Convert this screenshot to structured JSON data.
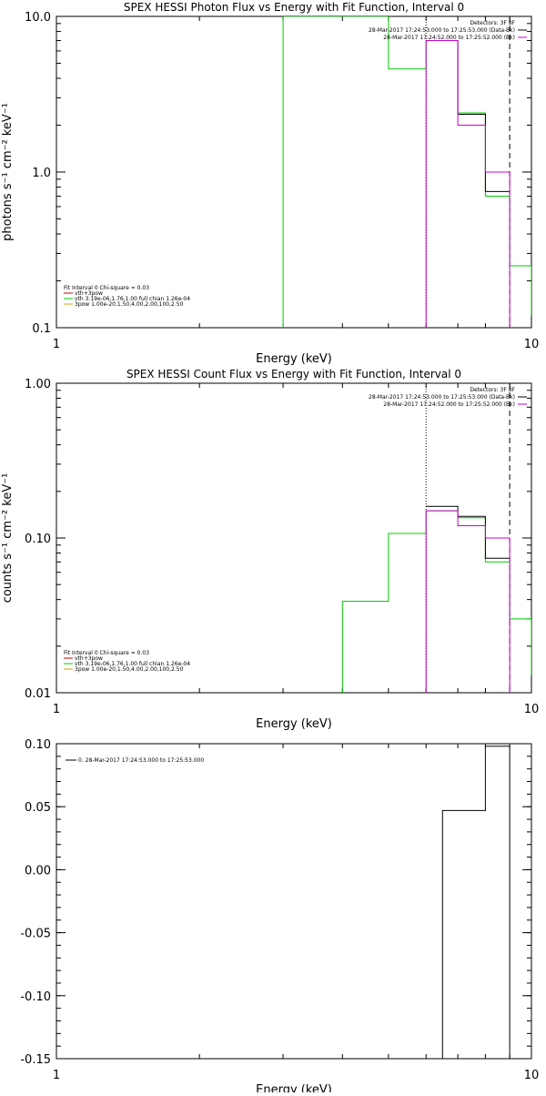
{
  "chart_data": [
    {
      "type": "line",
      "title": "SPEX HESSI Photon Flux vs Energy with Fit Function, Interval 0",
      "xlabel": "Energy (keV)",
      "ylabel": "photons s⁻¹ cm⁻² keV⁻¹",
      "xscale": "log",
      "yscale": "log",
      "xlim": [
        1,
        10
      ],
      "ylim": [
        0.1,
        10
      ],
      "xticks": [
        {
          "v": 1,
          "label": "1"
        },
        {
          "v": 10,
          "label": "10"
        }
      ],
      "yticks": [
        {
          "v": 0.1,
          "label": "0.1"
        },
        {
          "v": 1,
          "label": "1.0"
        },
        {
          "v": 10,
          "label": "10.0"
        }
      ],
      "legend_topright": [
        {
          "text": "Detectors: 3F 8F",
          "color": "#000000"
        },
        {
          "text": "28-Mar-2017 17:24:53.000 to 17:25:53.000 (Data-Bk)",
          "color": "#000000"
        },
        {
          "text": "28-Mar-2017 17:24:52.000 to 17:25:52.000 (Bk)",
          "color": "#cc00cc"
        }
      ],
      "legend_bottomleft": [
        {
          "text": "Fit Interval 0   Chi-square = 0.03",
          "color": "#000000"
        },
        {
          "text": "vth+3pow",
          "color": "#cc0000"
        },
        {
          "text": "vth 3.19e-06,1.76,1.00   full chian 1.26e-04",
          "color": "#00cc00"
        },
        {
          "text": "3pow 1.00e-20,1.50,4.00,2.00,100,2.50",
          "color": "#ccaa00"
        }
      ],
      "vlines": [
        {
          "x": 6.0,
          "style": "dotted",
          "color": "#000000"
        },
        {
          "x": 9.0,
          "style": "dashed",
          "color": "#000000"
        }
      ],
      "series": [
        {
          "color": "#00cc00",
          "edges": [
            3.0,
            5.0,
            6.0,
            7.0,
            8.0,
            9.0,
            10.0
          ],
          "values": [
            10,
            4.6,
            7.0,
            2.4,
            0.7,
            0.25
          ],
          "start_from_bottom": true,
          "end_to": 0.12
        },
        {
          "color": "#000000",
          "edges": [
            6.0,
            7.0,
            8.0,
            9.0
          ],
          "values": [
            7.0,
            2.35,
            0.75
          ],
          "start_from_bottom": false
        },
        {
          "color": "#cc00cc",
          "edges": [
            6.0,
            7.0,
            8.0,
            9.0
          ],
          "values": [
            7.0,
            2.0,
            1.0
          ],
          "start_from_bottom": true,
          "end_to_bottom": true
        }
      ]
    },
    {
      "type": "line",
      "title": "SPEX HESSI Count Flux vs Energy with Fit Function, Interval 0",
      "xlabel": "Energy (keV)",
      "ylabel": "counts s⁻¹ cm⁻² keV⁻¹",
      "xscale": "log",
      "yscale": "log",
      "xlim": [
        1,
        10
      ],
      "ylim": [
        0.01,
        1
      ],
      "xticks": [
        {
          "v": 1,
          "label": "1"
        },
        {
          "v": 10,
          "label": "10"
        }
      ],
      "yticks": [
        {
          "v": 0.01,
          "label": "0.01"
        },
        {
          "v": 0.1,
          "label": "0.10"
        },
        {
          "v": 1,
          "label": "1.00"
        }
      ],
      "legend_topright": [
        {
          "text": "Detectors: 3F 8F",
          "color": "#000000"
        },
        {
          "text": "28-Mar-2017 17:24:53.000 to 17:25:53.000 (Data-Bk)",
          "color": "#000000"
        },
        {
          "text": "28-Mar-2017 17:24:52.000 to 17:25:52.000 (Bk)",
          "color": "#cc00cc"
        }
      ],
      "legend_bottomleft": [
        {
          "text": "Fit Interval 0   Chi-square = 0.03",
          "color": "#000000"
        },
        {
          "text": "vth+3pow",
          "color": "#cc0000"
        },
        {
          "text": "vth 3.19e-06,1.76,1.00   full chian 1.26e-04",
          "color": "#00cc00"
        },
        {
          "text": "3pow 1.00e-20,1.50,4.00,2.00,100,2.50",
          "color": "#ccaa00"
        }
      ],
      "vlines": [
        {
          "x": 6.0,
          "style": "dotted",
          "color": "#000000"
        },
        {
          "x": 9.0,
          "style": "dashed",
          "color": "#000000"
        }
      ],
      "series": [
        {
          "color": "#00cc00",
          "edges": [
            4.0,
            5.0,
            6.0,
            7.0,
            8.0,
            9.0,
            10.0
          ],
          "values": [
            0.039,
            0.107,
            0.15,
            0.135,
            0.07,
            0.03
          ],
          "start_from_bottom": true,
          "end_to": 0.013
        },
        {
          "color": "#000000",
          "edges": [
            6.0,
            7.0,
            8.0,
            9.0
          ],
          "values": [
            0.16,
            0.138,
            0.074
          ],
          "start_from_bottom": false
        },
        {
          "color": "#cc00cc",
          "edges": [
            6.0,
            7.0,
            8.0,
            9.0
          ],
          "values": [
            0.15,
            0.12,
            0.1
          ],
          "start_from_bottom": true,
          "end_to_bottom": true
        }
      ]
    },
    {
      "type": "line",
      "title": "",
      "xlabel": "Energy (keV)",
      "ylabel": "",
      "xscale": "log",
      "yscale": "linear",
      "xlim": [
        1,
        10
      ],
      "ylim": [
        -0.15,
        0.1
      ],
      "xticks": [
        {
          "v": 1,
          "label": "1"
        },
        {
          "v": 10,
          "label": "10"
        }
      ],
      "yticks": [
        {
          "v": 0.1,
          "label": "0.10"
        },
        {
          "v": 0.05,
          "label": "0.05"
        },
        {
          "v": 0.0,
          "label": "0.00"
        },
        {
          "v": -0.05,
          "label": "-0.05"
        },
        {
          "v": -0.1,
          "label": "-0.10"
        },
        {
          "v": -0.15,
          "label": "-0.15"
        }
      ],
      "legend_topleft": [
        {
          "text": "0. 28-Mar-2017 17:24:53.000 to 17:25:53.000",
          "color": "#000000"
        }
      ],
      "vlines": [],
      "series": [
        {
          "color": "#000000",
          "edges": [
            6.5,
            8.0,
            9.0
          ],
          "values": [
            0.047,
            0.098
          ],
          "start_at": -0.15,
          "prefix_from": 6.0,
          "end_to_bottom": true
        }
      ]
    }
  ]
}
